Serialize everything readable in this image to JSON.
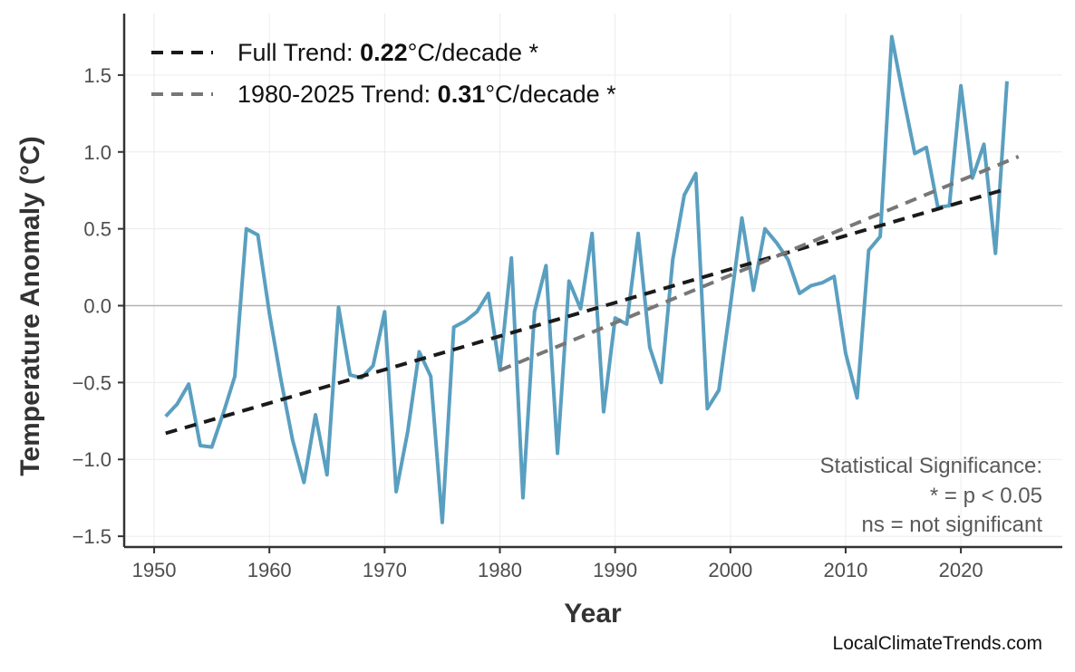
{
  "chart_data": {
    "type": "line",
    "xlabel": "Year",
    "ylabel": "Temperature Anomaly (°C)",
    "xlim": [
      1947.4,
      2028.8
    ],
    "ylim": [
      -1.57,
      1.9
    ],
    "x_ticks": [
      1950,
      1960,
      1970,
      1980,
      1990,
      2000,
      2010,
      2020
    ],
    "y_ticks": [
      -1.5,
      -1.0,
      -0.5,
      0.0,
      0.5,
      1.0,
      1.5
    ],
    "y_tick_labels": [
      "−1.5",
      "−1.0",
      "−0.5",
      "0.0",
      "0.5",
      "1.0",
      "1.5"
    ],
    "grid": true,
    "zero_line": true,
    "series": [
      {
        "color": "#5a9fc0",
        "x": [
          1951,
          1952,
          1953,
          1954,
          1955,
          1956,
          1957,
          1958,
          1959,
          1960,
          1961,
          1962,
          1963,
          1964,
          1965,
          1966,
          1967,
          1968,
          1969,
          1970,
          1971,
          1972,
          1973,
          1974,
          1975,
          1976,
          1977,
          1978,
          1979,
          1980,
          1981,
          1982,
          1983,
          1984,
          1985,
          1986,
          1987,
          1988,
          1989,
          1990,
          1991,
          1992,
          1993,
          1994,
          1995,
          1996,
          1997,
          1998,
          1999,
          2000,
          2001,
          2002,
          2003,
          2004,
          2005,
          2006,
          2007,
          2008,
          2009,
          2010,
          2011,
          2012,
          2013,
          2014,
          2015,
          2016,
          2017,
          2018,
          2019,
          2020,
          2021,
          2022,
          2023,
          2024
        ],
        "y": [
          -0.72,
          -0.64,
          -0.51,
          -0.91,
          -0.92,
          -0.7,
          -0.46,
          0.5,
          0.46,
          -0.05,
          -0.48,
          -0.87,
          -1.15,
          -0.71,
          -1.1,
          -0.01,
          -0.45,
          -0.47,
          -0.39,
          -0.04,
          -1.21,
          -0.82,
          -0.3,
          -0.46,
          -1.41,
          -0.14,
          -0.1,
          -0.04,
          0.08,
          -0.42,
          0.31,
          -1.25,
          -0.04,
          0.26,
          -0.96,
          0.16,
          -0.02,
          0.47,
          -0.69,
          -0.08,
          -0.12,
          0.47,
          -0.27,
          -0.5,
          0.3,
          0.72,
          0.86,
          -0.67,
          -0.55,
          0.0,
          0.57,
          0.1,
          0.5,
          0.41,
          0.3,
          0.08,
          0.13,
          0.15,
          0.19,
          -0.31,
          -0.6,
          0.36,
          0.45,
          1.75,
          1.36,
          0.99,
          1.03,
          0.64,
          0.65,
          1.43,
          0.83,
          1.05,
          0.34,
          1.46
        ]
      }
    ],
    "trends": [
      {
        "label_prefix": "Full Trend: ",
        "value": "0.22",
        "label_suffix": "°C/decade *",
        "color": "#1a1a1a",
        "x": [
          1951,
          2024
        ],
        "y": [
          -0.83,
          0.76
        ]
      },
      {
        "label_prefix": "1980-2025 Trend: ",
        "value": "0.31",
        "label_suffix": "°C/decade *",
        "color": "#777777",
        "x": [
          1980,
          2025
        ],
        "y": [
          -0.42,
          0.97
        ]
      }
    ],
    "legend_position": "top-left",
    "annotation": [
      "Statistical Significance:",
      "* = p < 0.05",
      "ns = not significant"
    ],
    "credit": "LocalClimateTrends.com"
  }
}
